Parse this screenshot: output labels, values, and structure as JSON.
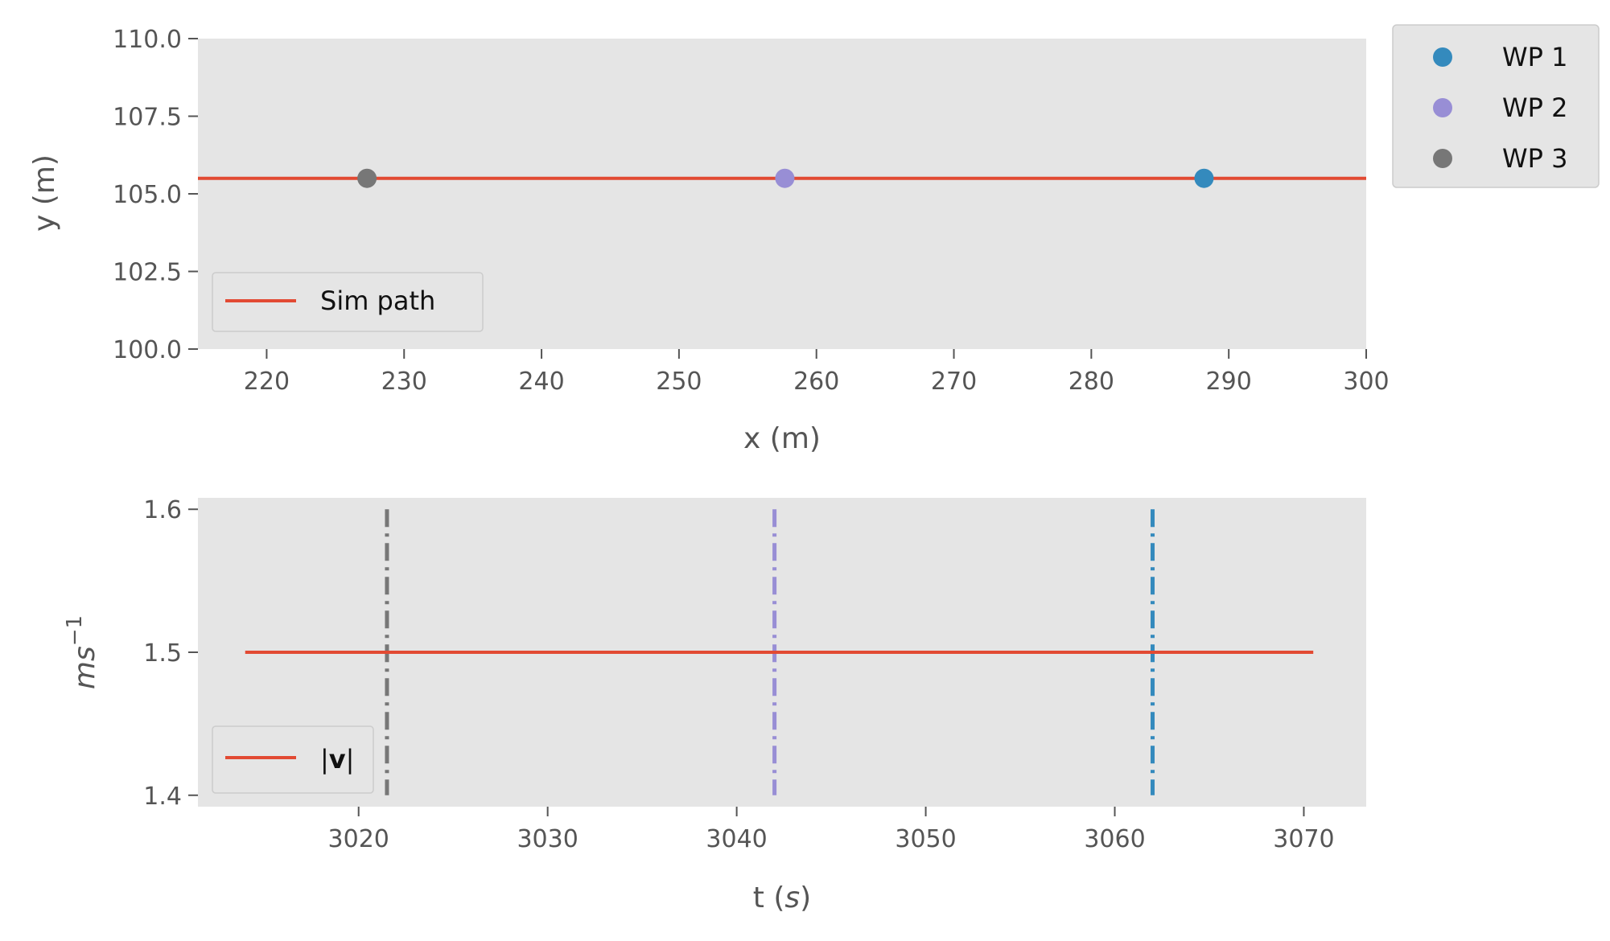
{
  "chart_data": [
    {
      "type": "scatter",
      "xlabel": "x (m)",
      "ylabel": "y (m)",
      "xlim": [
        215,
        300
      ],
      "ylim": [
        100,
        110
      ],
      "xticks": [
        "220",
        "230",
        "240",
        "250",
        "260",
        "270",
        "280",
        "290",
        "300"
      ],
      "yticks": [
        "100.0",
        "102.5",
        "105.0",
        "107.5",
        "110.0"
      ],
      "grid": false,
      "lines": [
        {
          "name": "Sim path",
          "color": "#E24A33",
          "x": [
            215,
            300
          ],
          "y": [
            105.5,
            105.5
          ]
        }
      ],
      "points": [
        {
          "name": "WP 1",
          "x": 288.2,
          "y": 105.5,
          "color": "#348ABD"
        },
        {
          "name": "WP 2",
          "x": 257.7,
          "y": 105.5,
          "color": "#988ED5"
        },
        {
          "name": "WP 3",
          "x": 227.3,
          "y": 105.5,
          "color": "#777777"
        }
      ],
      "legend_inner": {
        "placement": "lower-left",
        "label": "Sim path"
      },
      "legend_outer": {
        "placement": "right, outside top",
        "labels": [
          "WP 1",
          "WP 2",
          "WP 3"
        ]
      }
    },
    {
      "type": "line",
      "xlabel_plain": "t (",
      "xlabel_var": "s",
      "xlabel_close": ")",
      "ylabel_base": "ms",
      "ylabel_sup": "−1",
      "xlim": [
        3011.5,
        3073.3
      ],
      "ylim": [
        1.392,
        1.608
      ],
      "xticks": [
        "3020",
        "3030",
        "3040",
        "3050",
        "3060",
        "3070"
      ],
      "yticks": [
        "1.4",
        "1.5",
        "1.6"
      ],
      "grid": false,
      "series": [
        {
          "name": "|v|",
          "color": "#E24A33",
          "x": [
            3014,
            3070.5
          ],
          "y": [
            1.5,
            1.5
          ]
        }
      ],
      "vlines": [
        {
          "x": 3021.5,
          "color": "#777777",
          "style": "dashdot",
          "ymin": 1.4,
          "ymax": 1.6
        },
        {
          "x": 3042,
          "color": "#988ED5",
          "style": "dashdot",
          "ymin": 1.4,
          "ymax": 1.6
        },
        {
          "x": 3062,
          "color": "#348ABD",
          "style": "dashdot",
          "ymin": 1.4,
          "ymax": 1.6
        }
      ],
      "legend_inner": {
        "placement": "lower-left",
        "label_prefix": "|",
        "label_bold": "v",
        "label_suffix": "|"
      }
    }
  ],
  "colors": {
    "panel_bg": "#E5E5E5",
    "text": "#555555",
    "path": "#E24A33"
  }
}
